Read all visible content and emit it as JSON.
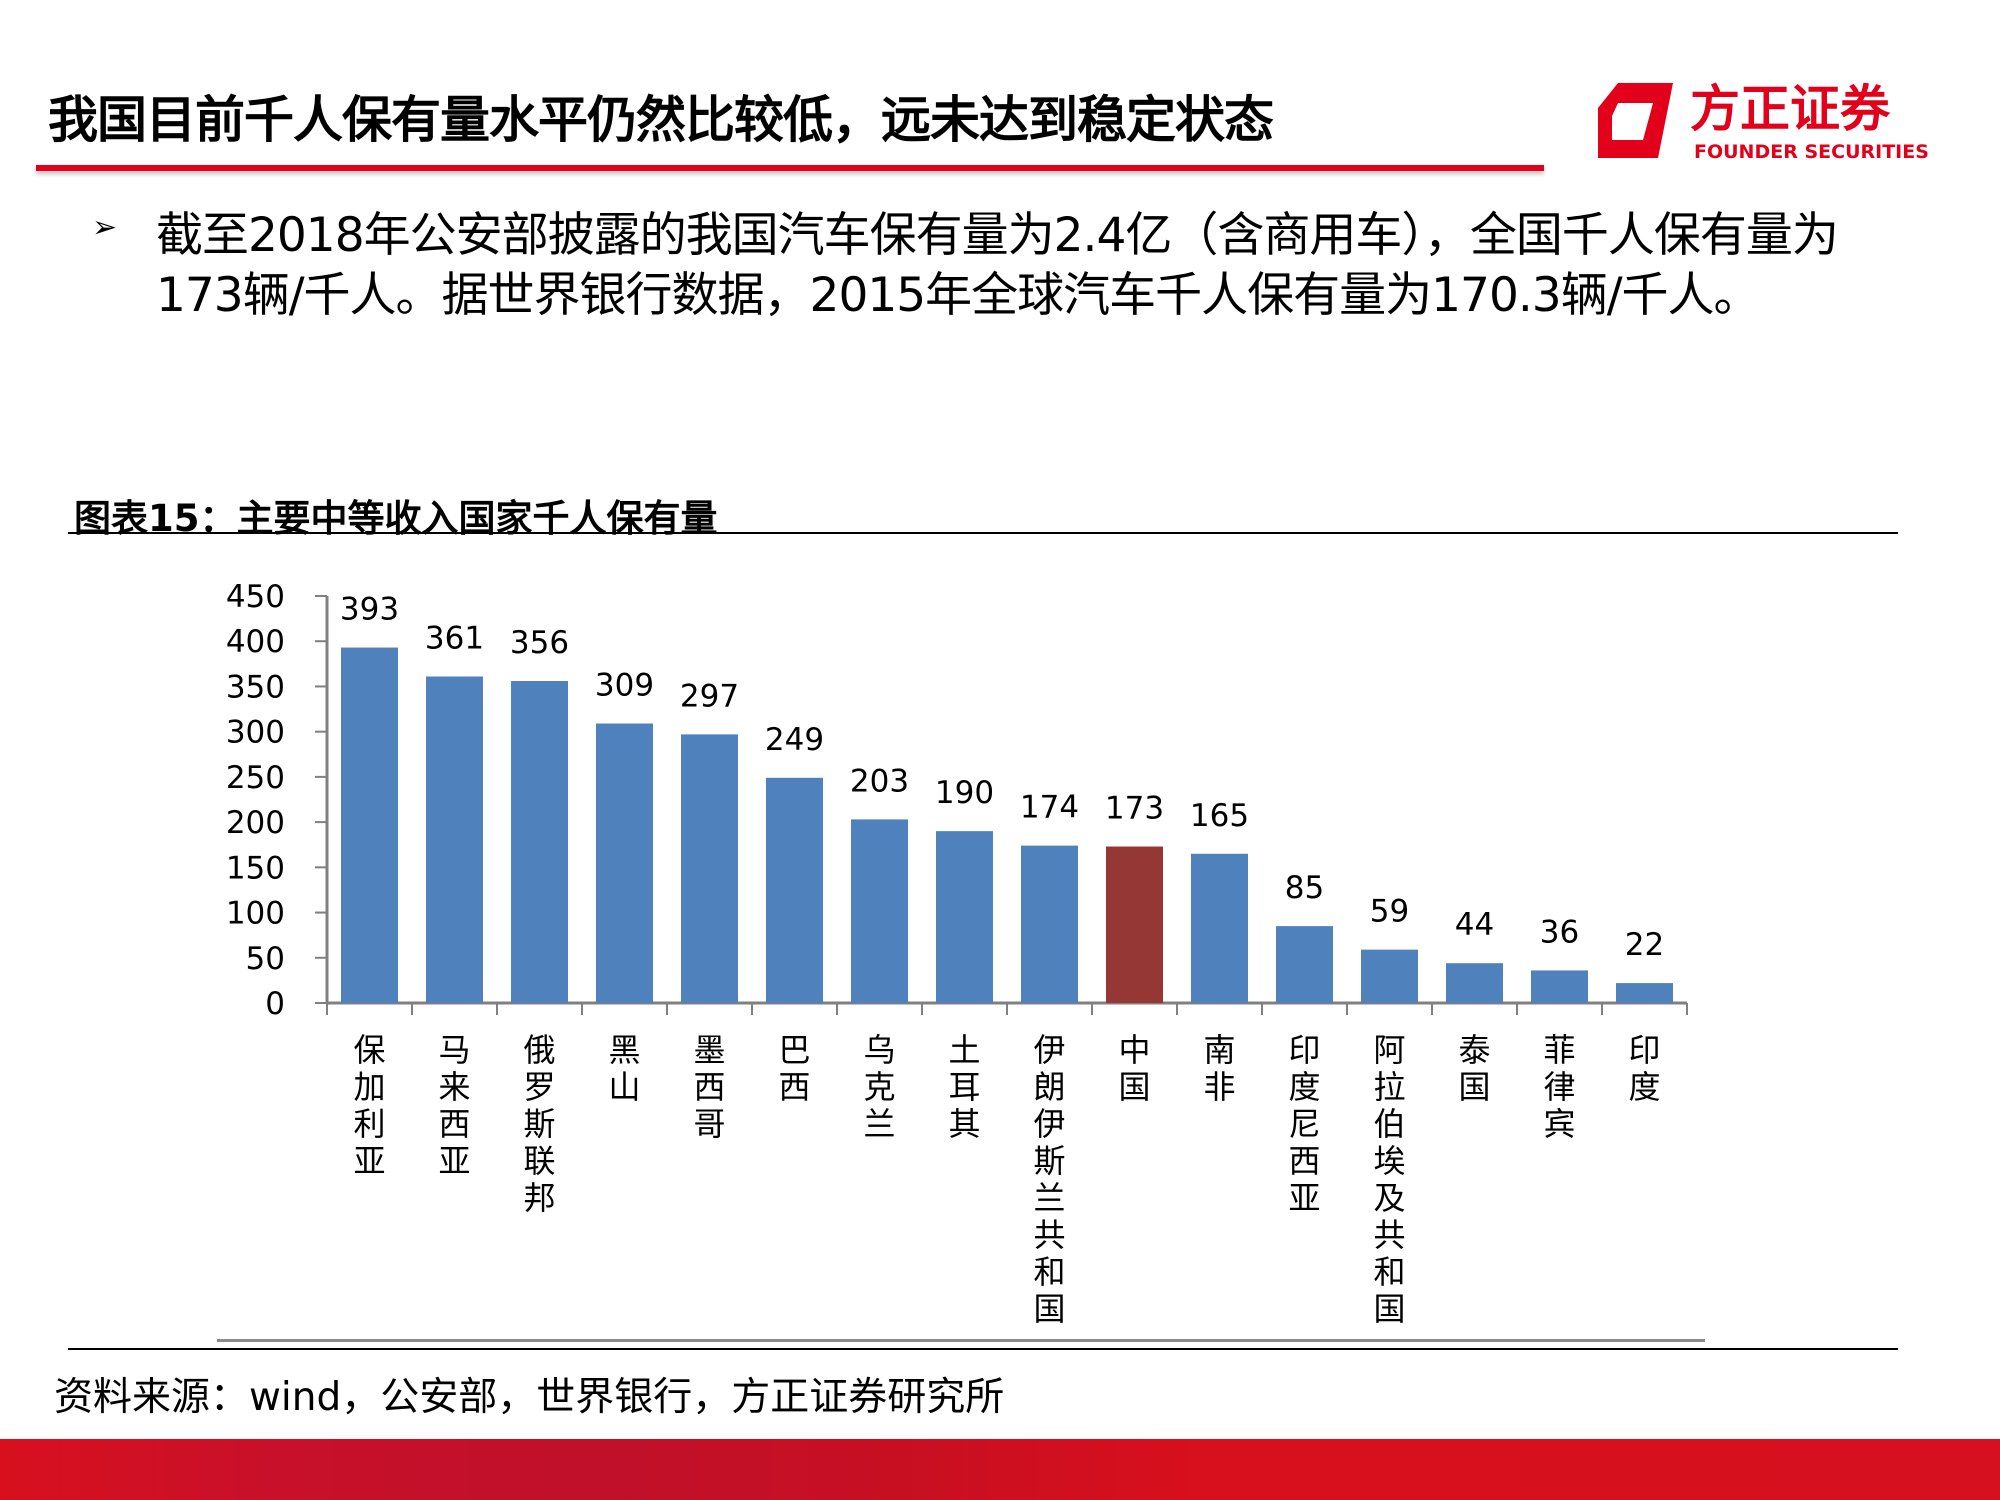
{
  "header": {
    "title": "我国目前千人保有量水平仍然比较低，远未达到稳定状态",
    "logo_text_cn": "方正证券",
    "logo_text_en": "FOUNDER SECURITIES",
    "accent_color": "#e3001b"
  },
  "body": {
    "bullet_icon": "arrow-bullet-icon",
    "bullet_glyph": "➢",
    "paragraph": "截至2018年公安部披露的我国汽车保有量为2.4亿（含商用车），全国千人保有量为173辆/千人。据世界银行数据，2015年全球汽车千人保有量为170.3辆/千人。"
  },
  "chart_caption": "图表15：主要中等收入国家千人保有量",
  "source": "资料来源：wind，公安部，世界银行，方正证券研究所",
  "chart_data": {
    "type": "bar",
    "title": "",
    "xlabel": "",
    "ylabel": "",
    "ylim": [
      0,
      450
    ],
    "yticks": [
      0,
      50,
      100,
      150,
      200,
      250,
      300,
      350,
      400,
      450
    ],
    "grid": false,
    "data_labels": true,
    "categories": [
      "保加利亚",
      "马来西亚",
      "俄罗斯联邦",
      "黑山",
      "墨西哥",
      "巴西",
      "乌克兰",
      "土耳其",
      "伊朗伊斯兰共和国",
      "中国",
      "南非",
      "印度尼西亚",
      "阿拉伯埃及共和国",
      "泰国",
      "菲律宾",
      "印度"
    ],
    "values": [
      393,
      361,
      356,
      309,
      297,
      249,
      203,
      190,
      174,
      173,
      165,
      85,
      59,
      44,
      36,
      22
    ],
    "bar_color": "#4f81bd",
    "highlight_category": "中国",
    "highlight_color": "#953735"
  }
}
